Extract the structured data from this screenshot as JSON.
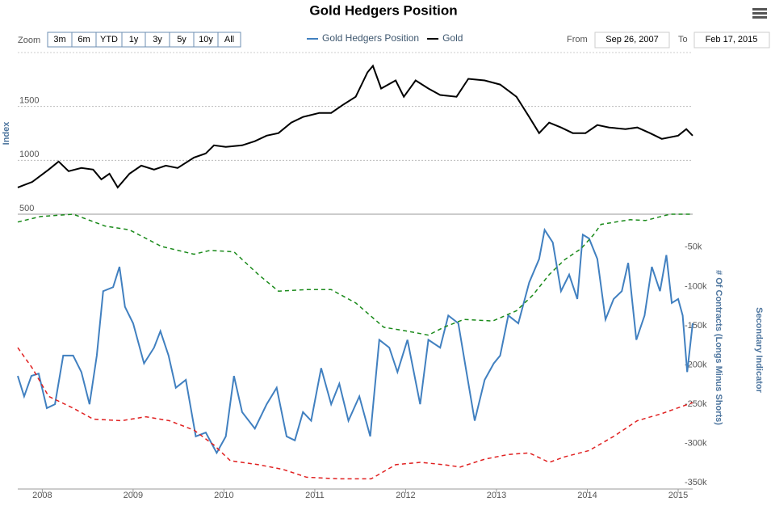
{
  "ui": {
    "zoom_label": "Zoom",
    "zoom_buttons": [
      "3m",
      "6m",
      "YTD",
      "1y",
      "3y",
      "5y",
      "10y",
      "All"
    ],
    "from_label": "From",
    "from_date": "Sep 26, 2007",
    "to_label": "To",
    "to_date": "Feb 17, 2015"
  },
  "chart_data": {
    "type": "line",
    "title": "Gold Hedgers Position",
    "y_label": "Index",
    "y2_labels": [
      "# Of Contracts (Longs Minus Shorts)",
      "Secondary Indicator"
    ],
    "xlim": [
      2007.73,
      2015.16
    ],
    "xticks": [
      2008,
      2009,
      2010,
      2011,
      2012,
      2013,
      2014,
      2015
    ],
    "ylim": [
      500,
      2000
    ],
    "yticks": [
      500,
      1000,
      1500
    ],
    "y2lim": [
      -358000,
      -8000
    ],
    "y2ticks": [
      {
        "value": -50000,
        "label": "-50k"
      },
      {
        "value": -100000,
        "label": "-100k"
      },
      {
        "value": -150000,
        "label": "-150k"
      },
      {
        "value": -200000,
        "label": "-200k"
      },
      {
        "value": -250000,
        "label": "-250k"
      },
      {
        "value": -300000,
        "label": "-300k"
      },
      {
        "value": -350000,
        "label": "-350k"
      }
    ],
    "grid": true,
    "series": [
      {
        "name": "Gold Hedgers Position",
        "color": "#4180c0",
        "axis": "y2",
        "x": [
          2007.73,
          2007.8,
          2007.88,
          2007.96,
          2008.05,
          2008.14,
          2008.23,
          2008.34,
          2008.43,
          2008.52,
          2008.6,
          2008.67,
          2008.78,
          2008.85,
          2008.91,
          2009.0,
          2009.12,
          2009.23,
          2009.3,
          2009.39,
          2009.47,
          2009.58,
          2009.69,
          2009.8,
          2009.92,
          2010.02,
          2010.11,
          2010.2,
          2010.34,
          2010.47,
          2010.58,
          2010.69,
          2010.78,
          2010.87,
          2010.96,
          2011.07,
          2011.18,
          2011.27,
          2011.37,
          2011.49,
          2011.61,
          2011.71,
          2011.82,
          2011.91,
          2012.02,
          2012.16,
          2012.25,
          2012.38,
          2012.47,
          2012.58,
          2012.67,
          2012.76,
          2012.87,
          2012.97,
          2013.04,
          2013.13,
          2013.24,
          2013.36,
          2013.47,
          2013.53,
          2013.62,
          2013.71,
          2013.8,
          2013.89,
          2013.95,
          2014.02,
          2014.11,
          2014.2,
          2014.29,
          2014.38,
          2014.45,
          2014.54,
          2014.63,
          2014.71,
          2014.8,
          2014.87,
          2014.93,
          2015.0,
          2015.05,
          2015.1,
          2015.16
        ],
        "values": [
          -214000,
          -240000,
          -214000,
          -211000,
          -255000,
          -250000,
          -188000,
          -188000,
          -209000,
          -250000,
          -188000,
          -106000,
          -101000,
          -75000,
          -126000,
          -147000,
          -198000,
          -178000,
          -157000,
          -188000,
          -229000,
          -219000,
          -291000,
          -286000,
          -312000,
          -291000,
          -214000,
          -260000,
          -281000,
          -250000,
          -229000,
          -291000,
          -296000,
          -260000,
          -271000,
          -204000,
          -250000,
          -224000,
          -271000,
          -240000,
          -291000,
          -168000,
          -178000,
          -209000,
          -168000,
          -250000,
          -168000,
          -178000,
          -137000,
          -147000,
          -209000,
          -271000,
          -219000,
          -198000,
          -188000,
          -137000,
          -147000,
          -95000,
          -65000,
          -28000,
          -44000,
          -106000,
          -85000,
          -116000,
          -34000,
          -39000,
          -65000,
          -142000,
          -116000,
          -106000,
          -70000,
          -168000,
          -137000,
          -75000,
          -106000,
          -60000,
          -121000,
          -116000,
          -137000,
          -209000,
          -147000
        ]
      },
      {
        "name": "Gold",
        "color": "#000000",
        "axis": "y",
        "x": [
          2007.73,
          2007.89,
          2008.07,
          2008.18,
          2008.29,
          2008.43,
          2008.56,
          2008.65,
          2008.74,
          2008.83,
          2008.96,
          2009.09,
          2009.23,
          2009.36,
          2009.49,
          2009.67,
          2009.8,
          2009.89,
          2010.02,
          2010.2,
          2010.34,
          2010.47,
          2010.6,
          2010.74,
          2010.87,
          2011.05,
          2011.18,
          2011.31,
          2011.45,
          2011.58,
          2011.64,
          2011.73,
          2011.89,
          2011.98,
          2012.11,
          2012.25,
          2012.38,
          2012.56,
          2012.69,
          2012.87,
          2013.04,
          2013.22,
          2013.36,
          2013.47,
          2013.58,
          2013.71,
          2013.84,
          2013.98,
          2014.11,
          2014.24,
          2014.42,
          2014.55,
          2014.69,
          2014.82,
          2015.0,
          2015.09,
          2015.16
        ],
        "values": [
          748,
          800,
          914,
          989,
          899,
          929,
          914,
          823,
          876,
          748,
          876,
          951,
          914,
          951,
          929,
          1026,
          1064,
          1139,
          1124,
          1139,
          1177,
          1229,
          1252,
          1350,
          1402,
          1440,
          1440,
          1515,
          1590,
          1816,
          1876,
          1666,
          1741,
          1590,
          1741,
          1666,
          1606,
          1590,
          1756,
          1741,
          1703,
          1590,
          1402,
          1252,
          1350,
          1305,
          1252,
          1252,
          1327,
          1305,
          1290,
          1305,
          1252,
          1199,
          1229,
          1290,
          1229
        ]
      },
      {
        "color": "#1a8a1a",
        "axis": "y2",
        "dash": true,
        "x": [
          2007.73,
          2007.98,
          2008.34,
          2008.69,
          2008.96,
          2009.31,
          2009.67,
          2009.85,
          2010.11,
          2010.38,
          2010.6,
          2010.91,
          2011.18,
          2011.45,
          2011.76,
          2012.02,
          2012.25,
          2012.42,
          2012.64,
          2012.96,
          2013.22,
          2013.4,
          2013.58,
          2013.75,
          2013.93,
          2014.07,
          2014.15,
          2014.47,
          2014.64,
          2014.91,
          2015.16
        ],
        "values": [
          -18000,
          -11000,
          -8000,
          -23000,
          -28000,
          -49000,
          -59000,
          -54000,
          -56000,
          -85000,
          -106000,
          -104000,
          -104000,
          -121000,
          -152000,
          -157000,
          -162000,
          -152000,
          -142000,
          -144000,
          -131000,
          -111000,
          -85000,
          -66000,
          -52000,
          -34000,
          -21000,
          -15000,
          -16000,
          -8000,
          -8000
        ]
      },
      {
        "color": "#e02020",
        "axis": "y2",
        "dash": true,
        "x": [
          2007.73,
          2007.89,
          2008.07,
          2008.34,
          2008.56,
          2008.87,
          2009.14,
          2009.4,
          2009.67,
          2009.89,
          2010.07,
          2010.38,
          2010.65,
          2010.91,
          2011.27,
          2011.62,
          2011.89,
          2012.16,
          2012.42,
          2012.6,
          2012.87,
          2013.13,
          2013.36,
          2013.58,
          2013.75,
          2014.02,
          2014.29,
          2014.55,
          2014.82,
          2015.16
        ],
        "values": [
          -178000,
          -204000,
          -240000,
          -255000,
          -269000,
          -271000,
          -266000,
          -271000,
          -283000,
          -302000,
          -322000,
          -327000,
          -333000,
          -343000,
          -345000,
          -345000,
          -327000,
          -324000,
          -327000,
          -330000,
          -320000,
          -314000,
          -312000,
          -324000,
          -317000,
          -309000,
          -291000,
          -271000,
          -262000,
          -248000
        ]
      }
    ]
  }
}
